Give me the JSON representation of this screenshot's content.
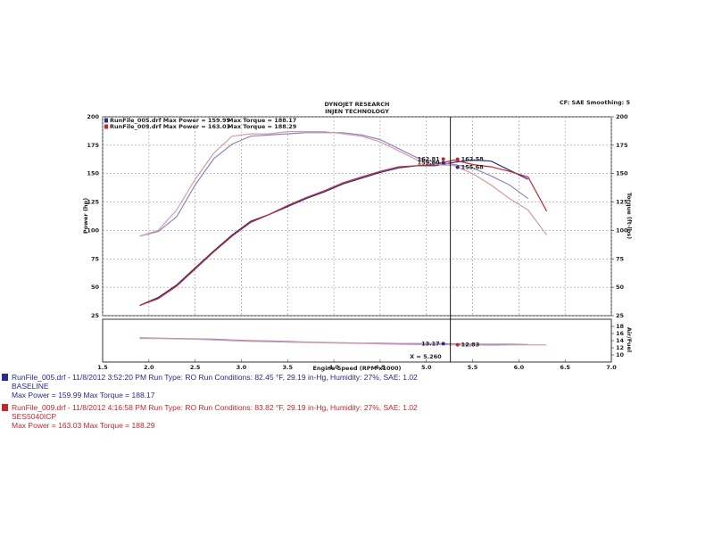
{
  "header": {
    "title": "DYNOJET RESEARCH",
    "subtitle": "INJEN TECHNOLOGY",
    "settings": "CF: SAE  Smoothing: 5"
  },
  "chart_data": [
    {
      "type": "line",
      "y_label": "Power (hp)",
      "y2_label": "Torque (ft-lbs)",
      "xlim": [
        1.5,
        7.0
      ],
      "ylim": [
        25,
        200
      ],
      "yticks": [
        25,
        50,
        75,
        100,
        125,
        150,
        175,
        200
      ],
      "y2lim": [
        25,
        200
      ],
      "y2ticks": [
        25,
        50,
        75,
        100,
        125,
        150,
        175,
        200
      ],
      "grid": true,
      "x": [
        1.9,
        2.1,
        2.3,
        2.5,
        2.7,
        2.9,
        3.1,
        3.3,
        3.5,
        3.7,
        3.9,
        4.1,
        4.3,
        4.5,
        4.7,
        4.9,
        5.1,
        5.3,
        5.5,
        5.7,
        5.9,
        6.1,
        6.3
      ],
      "series": [
        {
          "name": "RunFile_005.drf Max Power = 159.99",
          "color": "#2b2b8f",
          "axis": "y",
          "values": [
            34,
            41,
            52,
            67,
            82,
            96,
            108,
            114,
            121,
            128,
            134,
            141,
            146,
            151,
            155,
            157,
            157,
            160,
            162,
            161,
            153,
            145,
            null
          ]
        },
        {
          "name": "Max Torque = 188.17",
          "color": "#8f86bf",
          "axis": "y2",
          "values": [
            95,
            99,
            112,
            140,
            163,
            176,
            183,
            184,
            185,
            186,
            186,
            186,
            184,
            180,
            172,
            164,
            160,
            158,
            155,
            148,
            140,
            128,
            null
          ]
        },
        {
          "name": "RunFile_009.drf Max Power = 163.03",
          "color": "#c0282d",
          "axis": "y",
          "values": [
            34,
            40,
            51,
            66,
            81,
            95,
            107,
            114,
            122,
            129,
            135,
            142,
            147,
            152,
            156,
            157,
            158,
            162,
            158,
            156,
            152,
            147,
            117
          ]
        },
        {
          "name": "Max Torque = 188.29",
          "color": "#d99aa8",
          "axis": "y2",
          "values": [
            95,
            100,
            118,
            145,
            168,
            183,
            185,
            185,
            187,
            187,
            187,
            185,
            183,
            178,
            170,
            162,
            158,
            157,
            150,
            140,
            128,
            118,
            96
          ]
        }
      ],
      "readouts": [
        {
          "value": 162.81,
          "label": "162.81",
          "color": "#c0282d",
          "axis": "y"
        },
        {
          "value": 159.6,
          "label": "159.60",
          "color": "#2b2b8f",
          "axis": "y"
        },
        {
          "value": 162.58,
          "label": "162.58",
          "color": "#c0282d",
          "axis": "y2"
        },
        {
          "value": 155.68,
          "label": "155.68",
          "color": "#2b2b8f",
          "axis": "y2"
        }
      ]
    },
    {
      "type": "line",
      "x_label": "Engine Speed (RPM x1000)",
      "y2_label": "Air/Fuel",
      "xlim": [
        1.5,
        7.0
      ],
      "xticks": [
        {
          "value": 1.5,
          "label": "1.5"
        },
        {
          "value": 2,
          "label": "2.0"
        },
        {
          "value": 2.5,
          "label": "2.5"
        },
        {
          "value": 3,
          "label": "3.0"
        },
        {
          "value": 3.5,
          "label": "3.5"
        },
        {
          "value": 4,
          "label": "4.0"
        },
        {
          "value": 4.5,
          "label": "4.5"
        },
        {
          "value": 5,
          "label": "5.0"
        },
        {
          "value": 5.5,
          "label": "5.5"
        },
        {
          "value": 6,
          "label": "6.0"
        },
        {
          "value": 6.5,
          "label": "6.5"
        },
        {
          "value": 7,
          "label": "7.0"
        }
      ],
      "y2lim": [
        8,
        20
      ],
      "y2ticks": [
        10,
        12,
        14,
        16,
        18
      ],
      "x": [
        1.9,
        2.1,
        2.3,
        2.5,
        2.7,
        2.9,
        3.1,
        3.3,
        3.5,
        3.7,
        3.9,
        4.1,
        4.3,
        4.5,
        4.7,
        4.9,
        5.1,
        5.3,
        5.5,
        5.7,
        5.9,
        6.1,
        6.3
      ],
      "series": [
        {
          "color": "#8f86bf",
          "axis": "y2",
          "values": [
            14.8,
            14.7,
            14.6,
            14.5,
            14.4,
            14.2,
            14.0,
            13.9,
            13.8,
            13.6,
            13.5,
            13.4,
            13.3,
            13.3,
            13.2,
            13.2,
            13.2,
            13.1,
            13.0,
            13.0,
            13.0,
            12.9,
            null
          ]
        },
        {
          "color": "#d99aa8",
          "axis": "y2",
          "values": [
            14.6,
            14.6,
            14.5,
            14.4,
            14.2,
            14.0,
            13.8,
            13.7,
            13.6,
            13.5,
            13.4,
            13.3,
            13.2,
            13.1,
            13.0,
            12.9,
            12.9,
            12.8,
            12.8,
            12.7,
            12.8,
            12.8,
            12.8
          ]
        }
      ],
      "cursor": {
        "x": 5.26,
        "label": "X = 5.260"
      },
      "readouts": [
        {
          "value": 13.17,
          "label": "13.17",
          "color": "#2b2b8f",
          "axis": "y2"
        },
        {
          "value": 12.83,
          "label": "12.83",
          "color": "#c0282d",
          "axis": "y2"
        }
      ]
    }
  ],
  "runs": [
    {
      "line": "RunFile_005.drf - 11/8/2012 3:52:20 PM  Run Type: RO  Run Conditions: 82.45 °F, 29.19 in-Hg,  Humidity:  27%,  SAE: 1.02",
      "name": "BASELINE",
      "max": "Max Power = 159.99  Max Torque = 188.17",
      "color": "#2b2b8f"
    },
    {
      "line": "RunFile_009.drf - 11/8/2012 4:16:58 PM  Run Type: RO  Run Conditions: 83.82 °F, 29.19 in-Hg,  Humidity:  27%,  SAE: 1.02",
      "name": "SES5040ICP",
      "max": "Max Power = 163.03  Max Torque = 188.29",
      "color": "#c0282d"
    }
  ]
}
